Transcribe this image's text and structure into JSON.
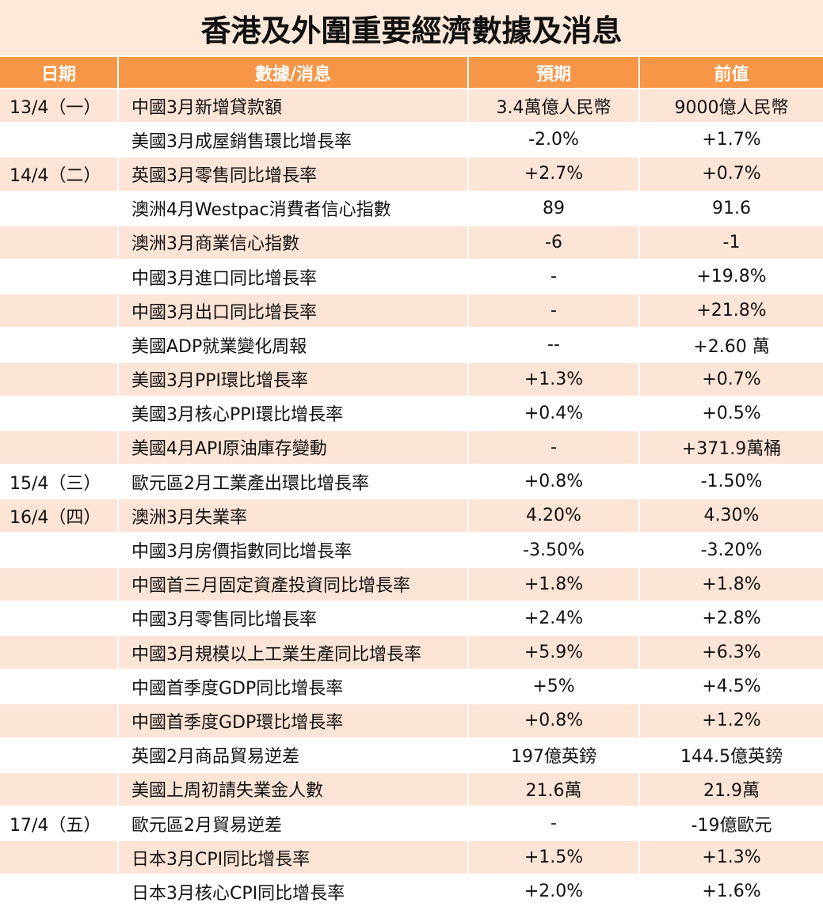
{
  "header": {
    "title": "香港及外圍重要經濟數據及消息"
  },
  "table": {
    "columns": [
      "日期",
      "數據/消息",
      "預期",
      "前值"
    ],
    "rows": [
      [
        "13/4（一）",
        "中國3月新增貸款額",
        "3.4萬億人民幣",
        "9000億人民幣"
      ],
      [
        null,
        "美國3月成屋銷售環比增長率",
        "-2.0%",
        "+1.7%"
      ],
      [
        "14/4（二）",
        "英國3月零售同比增長率",
        "+2.7%",
        "+0.7%"
      ],
      [
        null,
        "澳洲4月Westpac消費者信心指數",
        "89",
        "91.6"
      ],
      [
        null,
        "澳洲3月商業信心指數",
        "-6",
        "-1"
      ],
      [
        null,
        "中國3月進口同比增長率",
        "-",
        "+19.8%"
      ],
      [
        null,
        "中國3月出口同比增長率",
        "-",
        "+21.8%"
      ],
      [
        null,
        "美國ADP就業變化周報",
        "--",
        "+2.60 萬"
      ],
      [
        null,
        "美國3月PPI環比增長率",
        "+1.3%",
        "+0.7%"
      ],
      [
        null,
        "美國3月核心PPI環比增長率",
        "+0.4%",
        "+0.5%"
      ],
      [
        null,
        "美國4月API原油庫存變動",
        "-",
        "+371.9萬桶"
      ],
      [
        "15/4（三）",
        "歐元區2月工業產出環比增長率",
        "+0.8%",
        "-1.50%"
      ],
      [
        "16/4（四）",
        "澳洲3月失業率",
        "4.20%",
        "4.30%"
      ],
      [
        null,
        "中國3月房價指數同比增長率",
        "-3.50%",
        "-3.20%"
      ],
      [
        null,
        "中國首三月固定資產投資同比增長率",
        "+1.8%",
        "+1.8%"
      ],
      [
        null,
        "中國3月零售同比增長率",
        "+2.4%",
        "+2.8%"
      ],
      [
        null,
        "中國3月規模以上工業生產同比增長率",
        "+5.9%",
        "+6.3%"
      ],
      [
        null,
        "中國首季度GDP同比增長率",
        "+5%",
        "+4.5%"
      ],
      [
        null,
        "中國首季度GDP環比增長率",
        "+0.8%",
        "+1.2%"
      ],
      [
        null,
        "英國2月商品貿易逆差",
        "197億英鎊",
        "144.5億英鎊"
      ],
      [
        null,
        "美國上周初請失業金人數",
        "21.6萬",
        "21.9萬"
      ],
      [
        "17/4（五）",
        "歐元區2月貿易逆差",
        "-",
        "-19億歐元"
      ],
      [
        null,
        "日本3月CPI同比增長率",
        "+1.5%",
        "+1.3%"
      ],
      [
        null,
        "日本3月核心CPI同比增長率",
        "+2.0%",
        "+1.6%"
      ]
    ]
  }
}
